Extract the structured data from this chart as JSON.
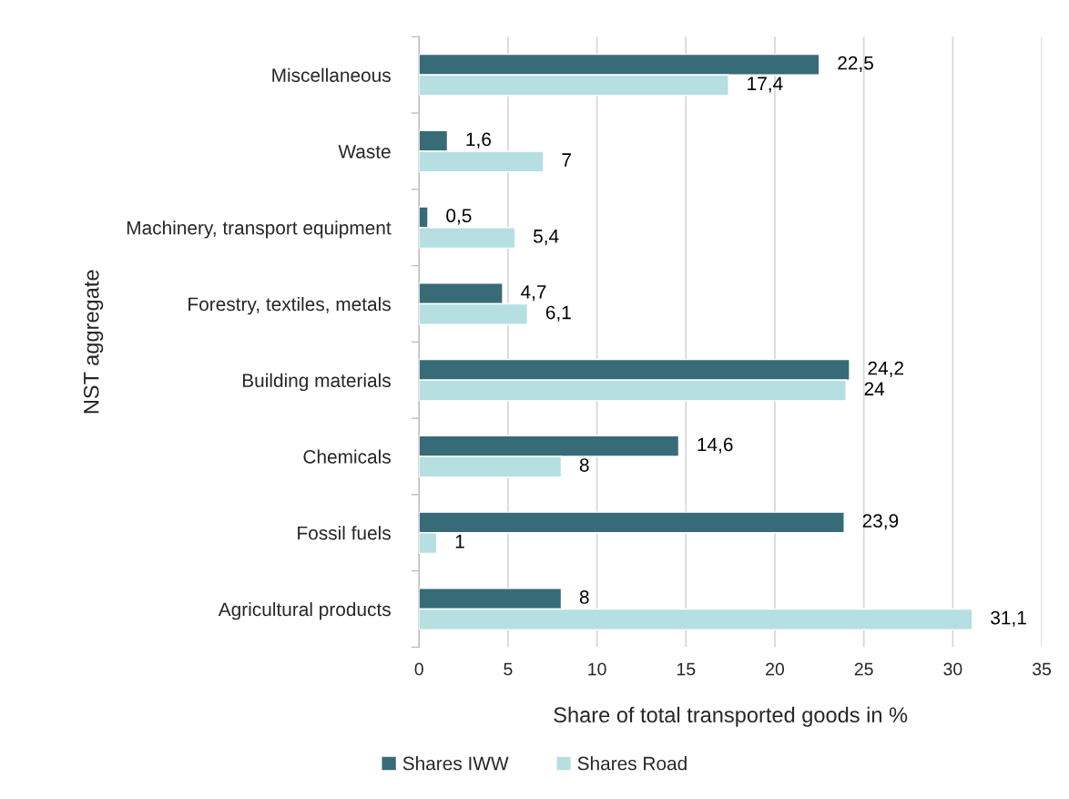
{
  "chart_data": {
    "type": "bar",
    "orientation": "horizontal",
    "categories": [
      "Miscellaneous",
      "Waste",
      "Machinery, transport equipment",
      "Forestry, textiles, metals",
      "Building materials",
      "Chemicals",
      "Fossil fuels",
      "Agricultural products"
    ],
    "series": [
      {
        "name": "Shares IWW",
        "color": "#376b77",
        "values": [
          22.5,
          1.6,
          0.5,
          4.7,
          24.2,
          14.6,
          23.9,
          8
        ],
        "value_labels": [
          "22,5",
          "1,6",
          "0,5",
          "4,7",
          "24,2",
          "14,6",
          "23,9",
          "8"
        ]
      },
      {
        "name": "Shares Road",
        "color": "#b5dfe1",
        "values": [
          17.4,
          7,
          5.4,
          6.1,
          24,
          8,
          1,
          31.1
        ],
        "value_labels": [
          "17,4",
          "7",
          "5,4",
          "6,1",
          "24",
          "8",
          "1",
          "31,1"
        ]
      }
    ],
    "xlabel": "Share of total transported goods in %",
    "ylabel": "NST aggregate",
    "xlim": [
      0,
      35
    ],
    "xticks": [
      0,
      5,
      10,
      15,
      20,
      25,
      30,
      35
    ],
    "grid": "x",
    "legend": "bottom"
  }
}
